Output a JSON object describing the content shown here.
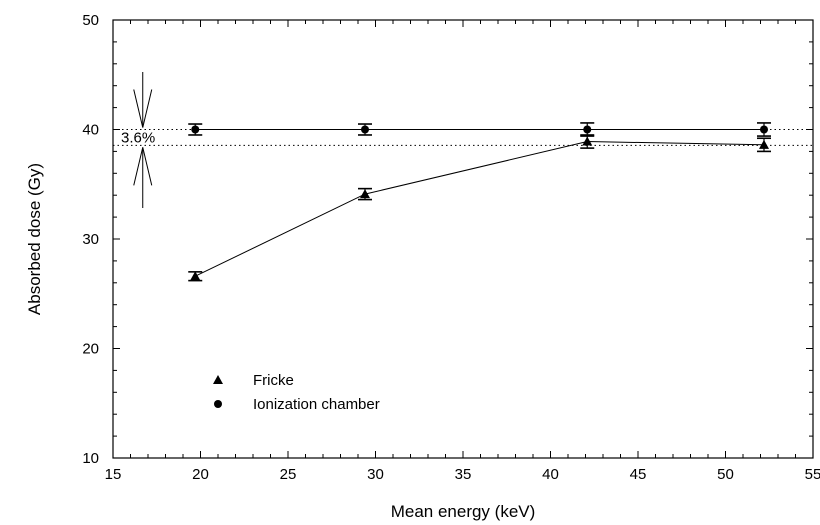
{
  "chart_data": {
    "type": "scatter",
    "xlabel": "Mean energy (keV)",
    "ylabel": "Absorbed dose (Gy)",
    "xlim": [
      15,
      55
    ],
    "ylim": [
      10,
      50
    ],
    "xticks": [
      15,
      20,
      25,
      30,
      35,
      40,
      45,
      50,
      55
    ],
    "yticks": [
      10,
      20,
      30,
      40,
      50
    ],
    "grid": false,
    "legend_position": "lower-left",
    "series": [
      {
        "name": "Fricke",
        "marker": "triangle",
        "x": [
          19.7,
          29.4,
          42.1,
          52.2
        ],
        "y": [
          26.6,
          34.1,
          38.9,
          38.6
        ],
        "y_error": [
          0.4,
          0.5,
          0.6,
          0.6
        ]
      },
      {
        "name": "Ionization chamber",
        "marker": "circle",
        "x": [
          19.7,
          29.4,
          42.1,
          52.2
        ],
        "y": [
          40.0,
          40.0,
          40.0,
          40.0
        ],
        "y_error": [
          0.5,
          0.5,
          0.6,
          0.6
        ]
      }
    ],
    "reference_lines": [
      {
        "y": 40.0,
        "style": "dotted"
      },
      {
        "y": 38.55,
        "style": "dotted"
      }
    ],
    "annotation": {
      "text": "3.6%",
      "x": 16.7,
      "y_upper": 40.0,
      "y_lower": 38.55
    }
  }
}
